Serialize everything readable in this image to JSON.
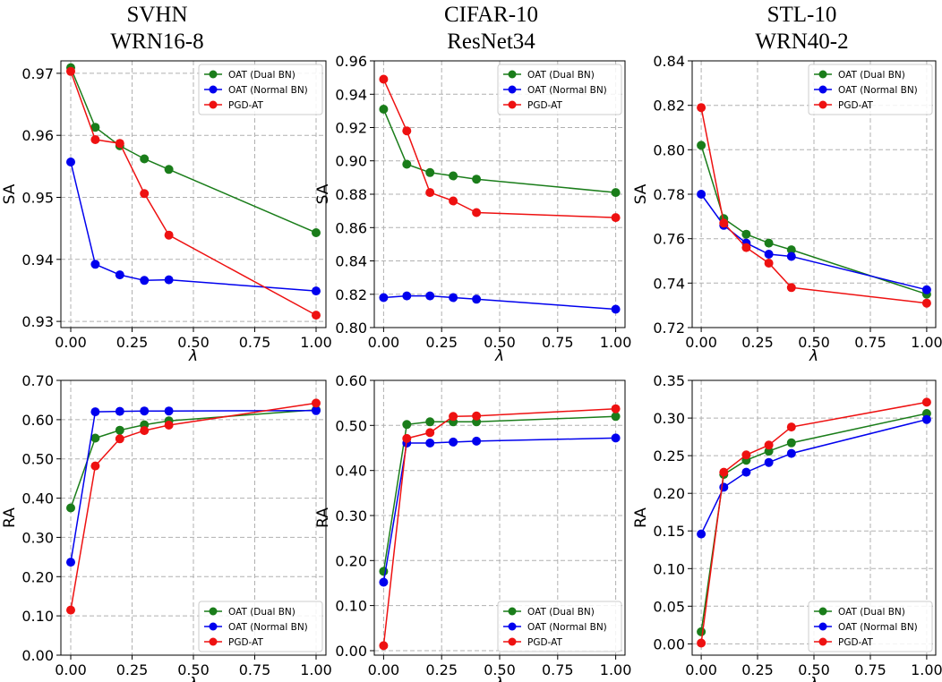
{
  "column_titles": [
    {
      "dataset": "SVHN",
      "model": "WRN16-8"
    },
    {
      "dataset": "CIFAR-10",
      "model": "ResNet34"
    },
    {
      "dataset": "STL-10",
      "model": "WRN40-2"
    }
  ],
  "colors": {
    "oat_dual": "#1a7d1a",
    "oat_normal": "#0000ee",
    "pgd": "#ee1111"
  },
  "chart_data": [
    {
      "type": "line",
      "id": "svhn-sa",
      "xlabel": "λ",
      "ylabel": "SA",
      "xlim": [
        -0.04,
        1.04
      ],
      "ylim": [
        0.929,
        0.972
      ],
      "xticks": [
        0,
        0.25,
        0.5,
        0.75,
        1
      ],
      "xtick_labels": [
        "0.00",
        "0.25",
        "0.50",
        "0.75",
        "1.00"
      ],
      "yticks": [
        0.93,
        0.94,
        0.95,
        0.96,
        0.97
      ],
      "ytick_labels": [
        "0.93",
        "0.94",
        "0.95",
        "0.96",
        "0.97"
      ],
      "legend": "upper-right",
      "x": [
        0,
        0.1,
        0.2,
        0.3,
        0.4,
        1.0
      ],
      "series": [
        {
          "name": "OAT (Dual BN)",
          "color_key": "oat_dual",
          "values": [
            0.9709,
            0.9613,
            0.9583,
            0.9562,
            0.9545,
            0.9443
          ]
        },
        {
          "name": "OAT (Normal BN)",
          "color_key": "oat_normal",
          "values": [
            0.9557,
            0.9392,
            0.9375,
            0.9366,
            0.9367,
            0.9349
          ]
        },
        {
          "name": "PGD-AT",
          "color_key": "pgd",
          "values": [
            0.9703,
            0.9593,
            0.9587,
            0.9506,
            0.9439,
            0.931
          ]
        }
      ]
    },
    {
      "type": "line",
      "id": "cifar-sa",
      "xlabel": "λ",
      "ylabel": "SA",
      "xlim": [
        -0.04,
        1.04
      ],
      "ylim": [
        0.8,
        0.96
      ],
      "xticks": [
        0,
        0.25,
        0.5,
        0.75,
        1
      ],
      "xtick_labels": [
        "0.00",
        "0.25",
        "0.50",
        "0.75",
        "1.00"
      ],
      "yticks": [
        0.8,
        0.82,
        0.84,
        0.86,
        0.88,
        0.9,
        0.92,
        0.94,
        0.96
      ],
      "ytick_labels": [
        "0.80",
        "0.82",
        "0.84",
        "0.86",
        "0.88",
        "0.90",
        "0.92",
        "0.94",
        "0.96"
      ],
      "legend": "upper-right",
      "x": [
        0,
        0.1,
        0.2,
        0.3,
        0.4,
        1.0
      ],
      "series": [
        {
          "name": "OAT (Dual BN)",
          "color_key": "oat_dual",
          "values": [
            0.931,
            0.898,
            0.893,
            0.891,
            0.889,
            0.881
          ]
        },
        {
          "name": "OAT (Normal BN)",
          "color_key": "oat_normal",
          "values": [
            0.818,
            0.819,
            0.819,
            0.818,
            0.817,
            0.811
          ]
        },
        {
          "name": "PGD-AT",
          "color_key": "pgd",
          "values": [
            0.949,
            0.918,
            0.881,
            0.876,
            0.869,
            0.866
          ]
        }
      ]
    },
    {
      "type": "line",
      "id": "stl-sa",
      "xlabel": "λ",
      "ylabel": "SA",
      "xlim": [
        -0.04,
        1.04
      ],
      "ylim": [
        0.72,
        0.84
      ],
      "xticks": [
        0,
        0.25,
        0.5,
        0.75,
        1
      ],
      "xtick_labels": [
        "0.00",
        "0.25",
        "0.50",
        "0.75",
        "1.00"
      ],
      "yticks": [
        0.72,
        0.74,
        0.76,
        0.78,
        0.8,
        0.82,
        0.84
      ],
      "ytick_labels": [
        "0.72",
        "0.74",
        "0.76",
        "0.78",
        "0.80",
        "0.82",
        "0.84"
      ],
      "legend": "upper-right",
      "x": [
        0,
        0.1,
        0.2,
        0.3,
        0.4,
        1.0
      ],
      "series": [
        {
          "name": "OAT (Dual BN)",
          "color_key": "oat_dual",
          "values": [
            0.802,
            0.769,
            0.762,
            0.758,
            0.755,
            0.735
          ]
        },
        {
          "name": "OAT (Normal BN)",
          "color_key": "oat_normal",
          "values": [
            0.78,
            0.766,
            0.758,
            0.753,
            0.752,
            0.737
          ]
        },
        {
          "name": "PGD-AT",
          "color_key": "pgd",
          "values": [
            0.819,
            0.767,
            0.756,
            0.749,
            0.738,
            0.731
          ]
        }
      ]
    },
    {
      "type": "line",
      "id": "svhn-ra",
      "xlabel": "λ",
      "ylabel": "RA",
      "xlim": [
        -0.04,
        1.04
      ],
      "ylim": [
        0.0,
        0.7
      ],
      "xticks": [
        0,
        0.25,
        0.5,
        0.75,
        1
      ],
      "xtick_labels": [
        "0.00",
        "0.25",
        "0.50",
        "0.75",
        "1.00"
      ],
      "yticks": [
        0,
        0.1,
        0.2,
        0.3,
        0.4,
        0.5,
        0.6,
        0.7
      ],
      "ytick_labels": [
        "0.00",
        "0.10",
        "0.20",
        "0.30",
        "0.40",
        "0.50",
        "0.60",
        "0.70"
      ],
      "legend": "lower-right",
      "x": [
        0,
        0.1,
        0.2,
        0.3,
        0.4,
        1.0
      ],
      "series": [
        {
          "name": "OAT (Dual BN)",
          "color_key": "oat_dual",
          "values": [
            0.375,
            0.553,
            0.573,
            0.587,
            0.597,
            0.625
          ]
        },
        {
          "name": "OAT (Normal BN)",
          "color_key": "oat_normal",
          "values": [
            0.237,
            0.62,
            0.621,
            0.622,
            0.622,
            0.623
          ]
        },
        {
          "name": "PGD-AT",
          "color_key": "pgd",
          "values": [
            0.115,
            0.482,
            0.551,
            0.572,
            0.586,
            0.642
          ]
        }
      ]
    },
    {
      "type": "line",
      "id": "cifar-ra",
      "xlabel": "λ",
      "ylabel": "RA",
      "xlim": [
        -0.04,
        1.04
      ],
      "ylim": [
        -0.01,
        0.6
      ],
      "xticks": [
        0,
        0.25,
        0.5,
        0.75,
        1
      ],
      "xtick_labels": [
        "0.00",
        "0.25",
        "0.50",
        "0.75",
        "1.00"
      ],
      "yticks": [
        0,
        0.1,
        0.2,
        0.3,
        0.4,
        0.5,
        0.6
      ],
      "ytick_labels": [
        "0.00",
        "0.10",
        "0.20",
        "0.30",
        "0.40",
        "0.50",
        "0.60"
      ],
      "legend": "lower-right",
      "x": [
        0,
        0.1,
        0.2,
        0.3,
        0.4,
        1.0
      ],
      "series": [
        {
          "name": "OAT (Dual BN)",
          "color_key": "oat_dual",
          "values": [
            0.176,
            0.502,
            0.508,
            0.508,
            0.508,
            0.52
          ]
        },
        {
          "name": "OAT (Normal BN)",
          "color_key": "oat_normal",
          "values": [
            0.152,
            0.461,
            0.461,
            0.463,
            0.465,
            0.472
          ]
        },
        {
          "name": "PGD-AT",
          "color_key": "pgd",
          "values": [
            0.011,
            0.471,
            0.484,
            0.52,
            0.521,
            0.537
          ]
        }
      ]
    },
    {
      "type": "line",
      "id": "stl-ra",
      "xlabel": "λ",
      "ylabel": "RA",
      "xlim": [
        -0.04,
        1.04
      ],
      "ylim": [
        -0.015,
        0.35
      ],
      "xticks": [
        0,
        0.25,
        0.5,
        0.75,
        1
      ],
      "xtick_labels": [
        "0.00",
        "0.25",
        "0.50",
        "0.75",
        "1.00"
      ],
      "yticks": [
        0,
        0.05,
        0.1,
        0.15,
        0.2,
        0.25,
        0.3,
        0.35
      ],
      "ytick_labels": [
        "0.00",
        "0.05",
        "0.10",
        "0.15",
        "0.20",
        "0.25",
        "0.30",
        "0.35"
      ],
      "legend": "lower-right",
      "x": [
        0,
        0.1,
        0.2,
        0.3,
        0.4,
        1.0
      ],
      "series": [
        {
          "name": "OAT (Dual BN)",
          "color_key": "oat_dual",
          "values": [
            0.016,
            0.225,
            0.244,
            0.256,
            0.267,
            0.306
          ]
        },
        {
          "name": "OAT (Normal BN)",
          "color_key": "oat_normal",
          "values": [
            0.146,
            0.208,
            0.228,
            0.241,
            0.253,
            0.298
          ]
        },
        {
          "name": "PGD-AT",
          "color_key": "pgd",
          "values": [
            0.001,
            0.228,
            0.251,
            0.264,
            0.288,
            0.321
          ]
        }
      ]
    }
  ]
}
